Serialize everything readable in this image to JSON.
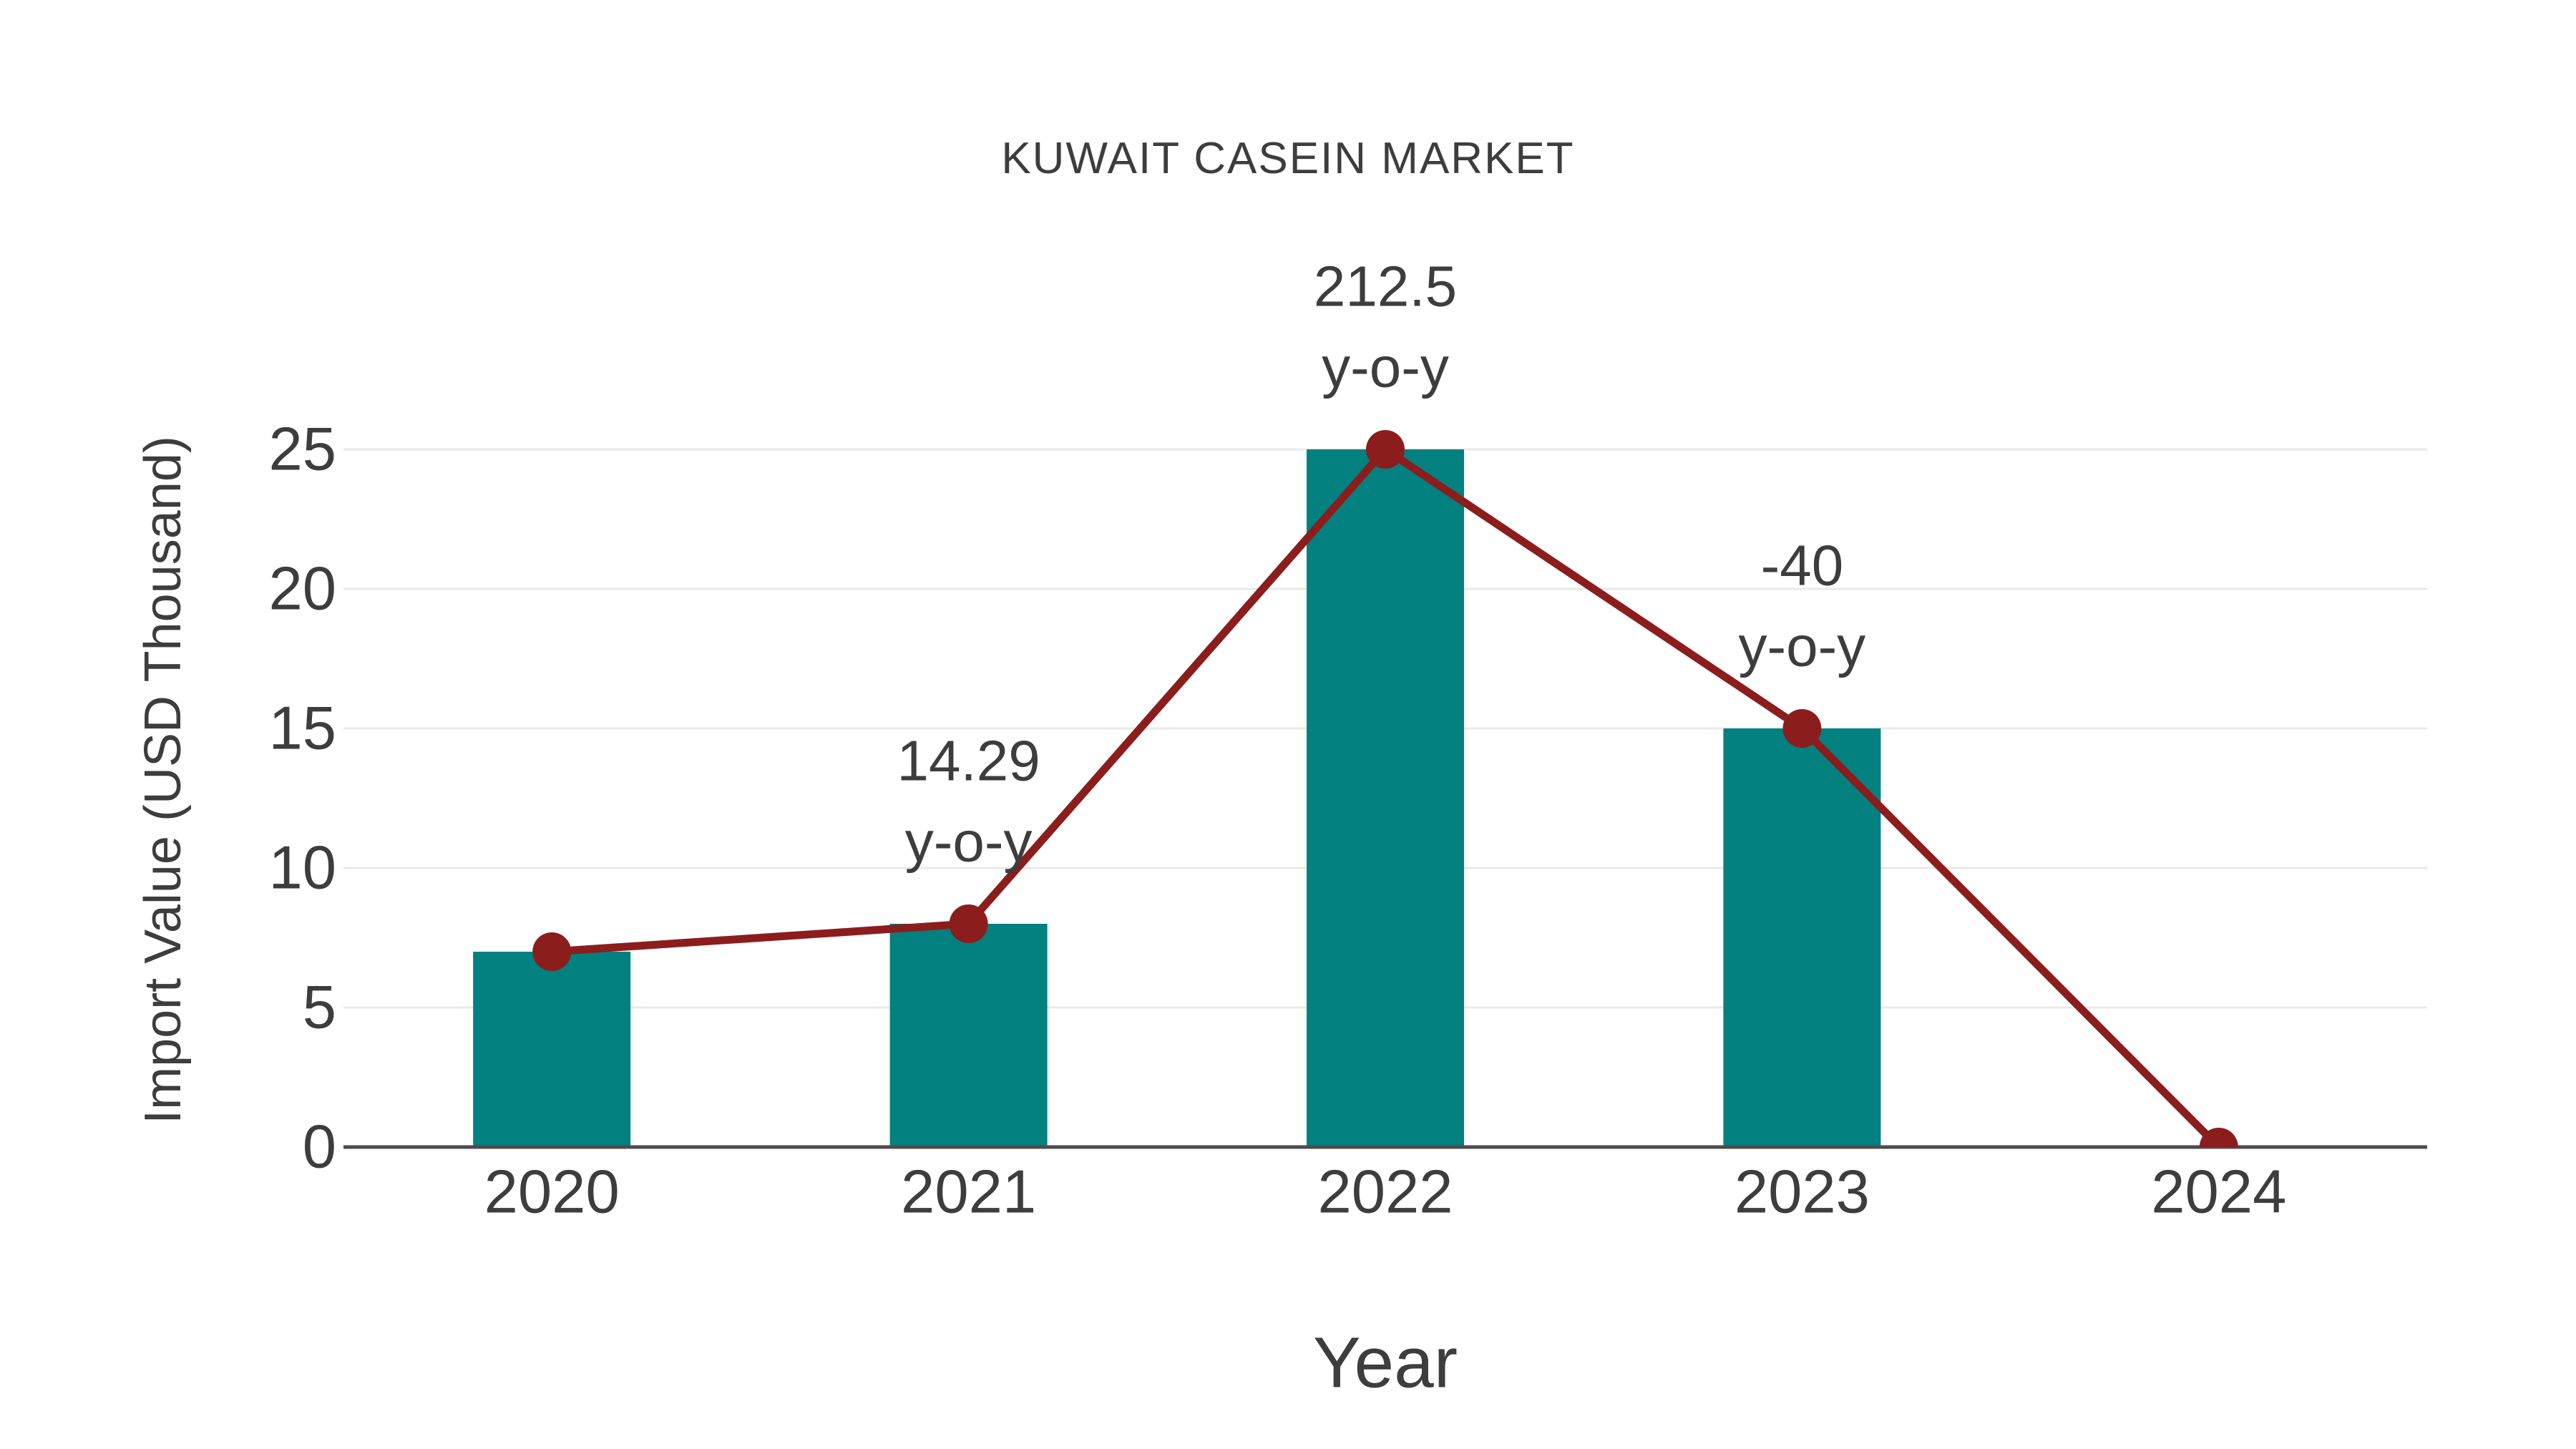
{
  "chart_data": {
    "type": "combo",
    "title": "KUWAIT CASEIN MARKET",
    "xlabel": "Year",
    "ylabel": "Import Value (USD Thousand)",
    "categories": [
      "2020",
      "2021",
      "2022",
      "2023",
      "2024"
    ],
    "series": [
      {
        "name": "import-value-bars",
        "type": "bar",
        "values": [
          7,
          8,
          25,
          15,
          0
        ]
      },
      {
        "name": "import-value-line",
        "type": "line",
        "values": [
          7,
          8,
          25,
          15,
          0
        ]
      }
    ],
    "annotations": [
      {
        "category": "2021",
        "value": "14.29",
        "suffix": "y-o-y"
      },
      {
        "category": "2022",
        "value": "212.5",
        "suffix": "y-o-y"
      },
      {
        "category": "2023",
        "value": "-40",
        "suffix": "y-o-y"
      }
    ],
    "yticks": [
      0,
      5,
      10,
      15,
      20,
      25
    ],
    "ylim": [
      0,
      25
    ],
    "grid": true,
    "legend_position": "none",
    "colors": {
      "bar": "#038080",
      "line": "#8b1d1d",
      "marker": "#8b1d1d",
      "axis": "#4c4c4c",
      "gridline": "#e9e9e9",
      "text": "#3d3d3d"
    }
  }
}
